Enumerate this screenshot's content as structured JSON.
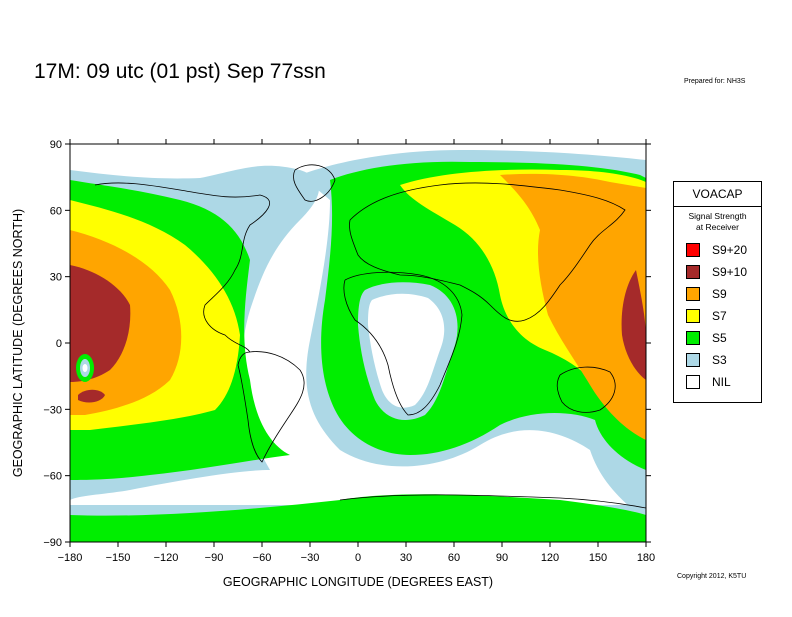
{
  "header": {
    "title": "17M:  09 utc (01 pst) Sep 77ssn",
    "prepared_for": "Prepared for: NH3S",
    "copyright": "Copyright 2012, K5TU"
  },
  "map": {
    "lon_range": [
      -180,
      180
    ],
    "lat_range": [
      -90,
      90
    ],
    "x_ticks": [
      -180,
      -150,
      -120,
      -90,
      -60,
      -30,
      0,
      30,
      60,
      90,
      120,
      150,
      180
    ],
    "y_ticks": [
      90,
      60,
      30,
      0,
      -30,
      -60,
      -90
    ],
    "x_tick_labels": [
      "−180",
      "−150",
      "−120",
      "−90",
      "−60",
      "−30",
      "0",
      "30",
      "60",
      "90",
      "120",
      "150",
      "180"
    ],
    "y_tick_labels": [
      "90",
      "60",
      "30",
      "0",
      "−30",
      "−60",
      "−90"
    ],
    "xlabel": "GEOGRAPHIC LONGITUDE (DEGREES EAST)",
    "ylabel": "GEOGRAPHIC LATITUDE (DEGREES NORTH)"
  },
  "legend": {
    "title": "VOACAP",
    "subtitle_line1": "Signal Strength",
    "subtitle_line2": "at Receiver",
    "items": [
      {
        "label": "S9+20",
        "color": "#ff0000"
      },
      {
        "label": "S9+10",
        "color": "#a52a2a"
      },
      {
        "label": "S9",
        "color": "#ffa500"
      },
      {
        "label": "S7",
        "color": "#ffff00"
      },
      {
        "label": "S5",
        "color": "#00ee00"
      },
      {
        "label": "S3",
        "color": "#add8e6"
      },
      {
        "label": "NIL",
        "color": "#ffffff"
      }
    ]
  }
}
